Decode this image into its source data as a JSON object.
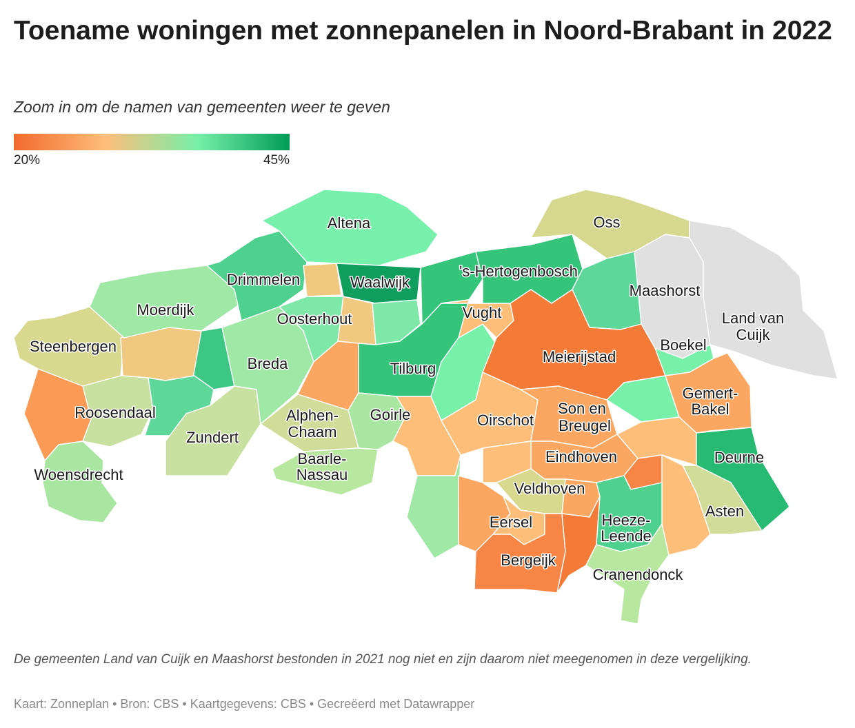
{
  "header": {
    "title": "Toename woningen met zonnepanelen in Noord-Brabant in 2022",
    "subtitle": "Zoom in om de namen van gemeenten weer te geven"
  },
  "legend": {
    "min_label": "20%",
    "max_label": "45%",
    "colors": [
      "#f26a2e",
      "#fdbe7a",
      "#77f0a9",
      "#009b57"
    ]
  },
  "map": {
    "no_data_color": "#e0e0e0",
    "labels": {
      "altena": "Altena",
      "oss": "Oss",
      "drimmelen": "Drimmelen",
      "waalwijk": "Waalwijk",
      "s_hertogenbosch": "'s-Hertogenbosch",
      "maashorst": "Maashorst",
      "moerdijk": "Moerdijk",
      "oosterhout": "Oosterhout",
      "vught": "Vught",
      "land_van_cuijk_1": "Land van",
      "land_van_cuijk_2": "Cuijk",
      "steenbergen": "Steenbergen",
      "breda": "Breda",
      "tilburg": "Tilburg",
      "meierijstad": "Meierijstad",
      "boekel": "Boekel",
      "gemert_bakel_1": "Gemert-",
      "gemert_bakel_2": "Bakel",
      "roosendaal": "Roosendaal",
      "alphen_chaam_1": "Alphen-",
      "alphen_chaam_2": "Chaam",
      "goirle": "Goirle",
      "oirschot": "Oirschot",
      "son_en_breugel_1": "Son en",
      "son_en_breugel_2": "Breugel",
      "zundert": "Zundert",
      "eindhoven": "Eindhoven",
      "deurne": "Deurne",
      "baarle_nassau_1": "Baarle-",
      "baarle_nassau_2": "Nassau",
      "woensdrecht": "Woensdrecht",
      "veldhoven": "Veldhoven",
      "asten": "Asten",
      "eersel": "Eersel",
      "heeze_leende_1": "Heeze-",
      "heeze_leende_2": "Leende",
      "bergeijk": "Bergeijk",
      "cranendonck": "Cranendonck"
    }
  },
  "footer": {
    "note": "De gemeenten Land van Cuijk en Maashorst bestonden in 2021 nog niet en zijn daarom niet meegenomen in deze vergelijking.",
    "credits": "Kaart: Zonneplan • Bron: CBS • Kaartgegevens: CBS • Gecreëerd met Datawrapper"
  }
}
